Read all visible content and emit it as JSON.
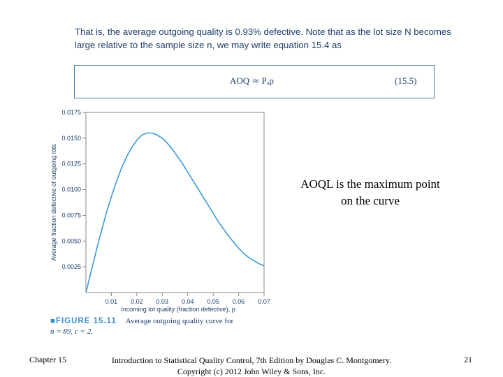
{
  "slide": {
    "intro_text": "That is, the average outgoing quality is 0.93% defective. Note that as the lot size N becomes large relative to the sample size n, we may write equation 15.4 as",
    "equation": "AOQ ≃ Pₐp",
    "equation_number": "(15.5)",
    "note": "AOQL is the maximum point on the curve",
    "footer_left": "Chapter 15",
    "footer_center": "Introduction to Statistical Quality Control, 7th Edition by Douglas C. Montgomery. Copyright (c) 2012 John Wiley & Sons, Inc.",
    "page_number": "21"
  },
  "figure": {
    "label": "■FIGURE 15.11",
    "title": "Average outgoing quality curve for",
    "subtitle": "n = 89, c = 2."
  },
  "colors": {
    "curve": "#3a9ad9",
    "axis": "#888888",
    "text": "#1b3f6b"
  },
  "chart_data": {
    "type": "line",
    "xlabel": "Incoming lot quality (fraction defective), p",
    "ylabel": "Average fraction defective of outgoing lots",
    "xlim": [
      0,
      0.07
    ],
    "ylim": [
      0,
      0.0175
    ],
    "x_ticks": [
      "0.01",
      "0.02",
      "0.03",
      "0.04",
      "0.05",
      "0.06",
      "0.07"
    ],
    "y_ticks": [
      "0.0025",
      "0.0050",
      "0.0075",
      "0.0100",
      "0.0125",
      "0.0150",
      "0.0175"
    ],
    "series": [
      {
        "x": [
          0.0,
          0.002,
          0.004,
          0.006,
          0.008,
          0.01,
          0.012,
          0.014,
          0.016,
          0.018,
          0.02,
          0.022,
          0.024,
          0.026,
          0.028,
          0.03,
          0.032,
          0.034,
          0.036,
          0.038,
          0.04,
          0.042,
          0.044,
          0.046,
          0.048,
          0.05,
          0.052,
          0.054,
          0.056,
          0.058,
          0.06,
          0.062,
          0.064,
          0.066,
          0.068,
          0.07
        ],
        "y": [
          0.0,
          0.002,
          0.004,
          0.0059,
          0.0077,
          0.0093,
          0.0108,
          0.0121,
          0.0132,
          0.0141,
          0.0148,
          0.0153,
          0.0155,
          0.0155,
          0.0153,
          0.015,
          0.0145,
          0.0139,
          0.0132,
          0.0125,
          0.0117,
          0.0109,
          0.0101,
          0.0093,
          0.0085,
          0.0077,
          0.0069,
          0.0062,
          0.0055,
          0.0049,
          0.0043,
          0.0038,
          0.0034,
          0.0031,
          0.0028,
          0.0026
        ]
      }
    ]
  }
}
